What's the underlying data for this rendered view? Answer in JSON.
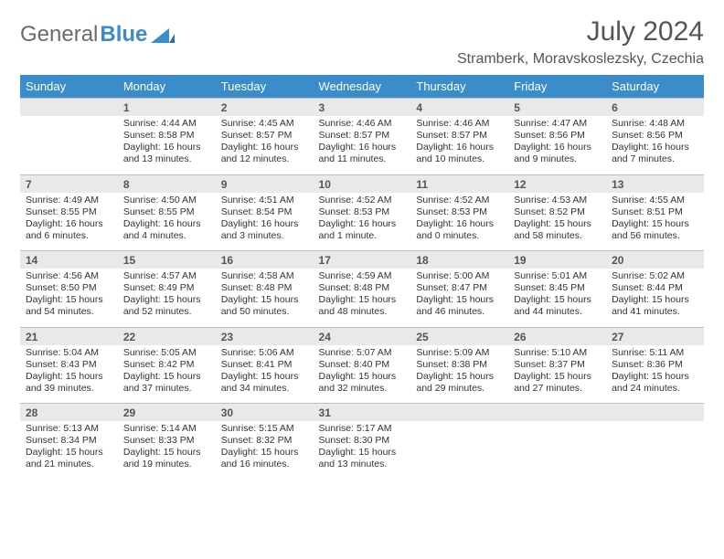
{
  "brand": {
    "part1": "General",
    "part2": "Blue"
  },
  "title": "July 2024",
  "location": "Stramberk, Moravskoslezsky, Czechia",
  "weekdays": [
    "Sunday",
    "Monday",
    "Tuesday",
    "Wednesday",
    "Thursday",
    "Friday",
    "Saturday"
  ],
  "colors": {
    "header_bg": "#3b8ccb",
    "header_fg": "#ffffff",
    "daynum_bg": "#e9e9e9",
    "border": "#bfbfbf",
    "brand_blue": "#3b8ccb",
    "text_muted": "#555555",
    "text_body": "#333333",
    "page_bg": "#ffffff"
  },
  "weeks": [
    [
      null,
      {
        "n": "1",
        "sr": "Sunrise: 4:44 AM",
        "ss": "Sunset: 8:58 PM",
        "d1": "Daylight: 16 hours",
        "d2": "and 13 minutes."
      },
      {
        "n": "2",
        "sr": "Sunrise: 4:45 AM",
        "ss": "Sunset: 8:57 PM",
        "d1": "Daylight: 16 hours",
        "d2": "and 12 minutes."
      },
      {
        "n": "3",
        "sr": "Sunrise: 4:46 AM",
        "ss": "Sunset: 8:57 PM",
        "d1": "Daylight: 16 hours",
        "d2": "and 11 minutes."
      },
      {
        "n": "4",
        "sr": "Sunrise: 4:46 AM",
        "ss": "Sunset: 8:57 PM",
        "d1": "Daylight: 16 hours",
        "d2": "and 10 minutes."
      },
      {
        "n": "5",
        "sr": "Sunrise: 4:47 AM",
        "ss": "Sunset: 8:56 PM",
        "d1": "Daylight: 16 hours",
        "d2": "and 9 minutes."
      },
      {
        "n": "6",
        "sr": "Sunrise: 4:48 AM",
        "ss": "Sunset: 8:56 PM",
        "d1": "Daylight: 16 hours",
        "d2": "and 7 minutes."
      }
    ],
    [
      {
        "n": "7",
        "sr": "Sunrise: 4:49 AM",
        "ss": "Sunset: 8:55 PM",
        "d1": "Daylight: 16 hours",
        "d2": "and 6 minutes."
      },
      {
        "n": "8",
        "sr": "Sunrise: 4:50 AM",
        "ss": "Sunset: 8:55 PM",
        "d1": "Daylight: 16 hours",
        "d2": "and 4 minutes."
      },
      {
        "n": "9",
        "sr": "Sunrise: 4:51 AM",
        "ss": "Sunset: 8:54 PM",
        "d1": "Daylight: 16 hours",
        "d2": "and 3 minutes."
      },
      {
        "n": "10",
        "sr": "Sunrise: 4:52 AM",
        "ss": "Sunset: 8:53 PM",
        "d1": "Daylight: 16 hours",
        "d2": "and 1 minute."
      },
      {
        "n": "11",
        "sr": "Sunrise: 4:52 AM",
        "ss": "Sunset: 8:53 PM",
        "d1": "Daylight: 16 hours",
        "d2": "and 0 minutes."
      },
      {
        "n": "12",
        "sr": "Sunrise: 4:53 AM",
        "ss": "Sunset: 8:52 PM",
        "d1": "Daylight: 15 hours",
        "d2": "and 58 minutes."
      },
      {
        "n": "13",
        "sr": "Sunrise: 4:55 AM",
        "ss": "Sunset: 8:51 PM",
        "d1": "Daylight: 15 hours",
        "d2": "and 56 minutes."
      }
    ],
    [
      {
        "n": "14",
        "sr": "Sunrise: 4:56 AM",
        "ss": "Sunset: 8:50 PM",
        "d1": "Daylight: 15 hours",
        "d2": "and 54 minutes."
      },
      {
        "n": "15",
        "sr": "Sunrise: 4:57 AM",
        "ss": "Sunset: 8:49 PM",
        "d1": "Daylight: 15 hours",
        "d2": "and 52 minutes."
      },
      {
        "n": "16",
        "sr": "Sunrise: 4:58 AM",
        "ss": "Sunset: 8:48 PM",
        "d1": "Daylight: 15 hours",
        "d2": "and 50 minutes."
      },
      {
        "n": "17",
        "sr": "Sunrise: 4:59 AM",
        "ss": "Sunset: 8:48 PM",
        "d1": "Daylight: 15 hours",
        "d2": "and 48 minutes."
      },
      {
        "n": "18",
        "sr": "Sunrise: 5:00 AM",
        "ss": "Sunset: 8:47 PM",
        "d1": "Daylight: 15 hours",
        "d2": "and 46 minutes."
      },
      {
        "n": "19",
        "sr": "Sunrise: 5:01 AM",
        "ss": "Sunset: 8:45 PM",
        "d1": "Daylight: 15 hours",
        "d2": "and 44 minutes."
      },
      {
        "n": "20",
        "sr": "Sunrise: 5:02 AM",
        "ss": "Sunset: 8:44 PM",
        "d1": "Daylight: 15 hours",
        "d2": "and 41 minutes."
      }
    ],
    [
      {
        "n": "21",
        "sr": "Sunrise: 5:04 AM",
        "ss": "Sunset: 8:43 PM",
        "d1": "Daylight: 15 hours",
        "d2": "and 39 minutes."
      },
      {
        "n": "22",
        "sr": "Sunrise: 5:05 AM",
        "ss": "Sunset: 8:42 PM",
        "d1": "Daylight: 15 hours",
        "d2": "and 37 minutes."
      },
      {
        "n": "23",
        "sr": "Sunrise: 5:06 AM",
        "ss": "Sunset: 8:41 PM",
        "d1": "Daylight: 15 hours",
        "d2": "and 34 minutes."
      },
      {
        "n": "24",
        "sr": "Sunrise: 5:07 AM",
        "ss": "Sunset: 8:40 PM",
        "d1": "Daylight: 15 hours",
        "d2": "and 32 minutes."
      },
      {
        "n": "25",
        "sr": "Sunrise: 5:09 AM",
        "ss": "Sunset: 8:38 PM",
        "d1": "Daylight: 15 hours",
        "d2": "and 29 minutes."
      },
      {
        "n": "26",
        "sr": "Sunrise: 5:10 AM",
        "ss": "Sunset: 8:37 PM",
        "d1": "Daylight: 15 hours",
        "d2": "and 27 minutes."
      },
      {
        "n": "27",
        "sr": "Sunrise: 5:11 AM",
        "ss": "Sunset: 8:36 PM",
        "d1": "Daylight: 15 hours",
        "d2": "and 24 minutes."
      }
    ],
    [
      {
        "n": "28",
        "sr": "Sunrise: 5:13 AM",
        "ss": "Sunset: 8:34 PM",
        "d1": "Daylight: 15 hours",
        "d2": "and 21 minutes."
      },
      {
        "n": "29",
        "sr": "Sunrise: 5:14 AM",
        "ss": "Sunset: 8:33 PM",
        "d1": "Daylight: 15 hours",
        "d2": "and 19 minutes."
      },
      {
        "n": "30",
        "sr": "Sunrise: 5:15 AM",
        "ss": "Sunset: 8:32 PM",
        "d1": "Daylight: 15 hours",
        "d2": "and 16 minutes."
      },
      {
        "n": "31",
        "sr": "Sunrise: 5:17 AM",
        "ss": "Sunset: 8:30 PM",
        "d1": "Daylight: 15 hours",
        "d2": "and 13 minutes."
      },
      null,
      null,
      null
    ]
  ]
}
